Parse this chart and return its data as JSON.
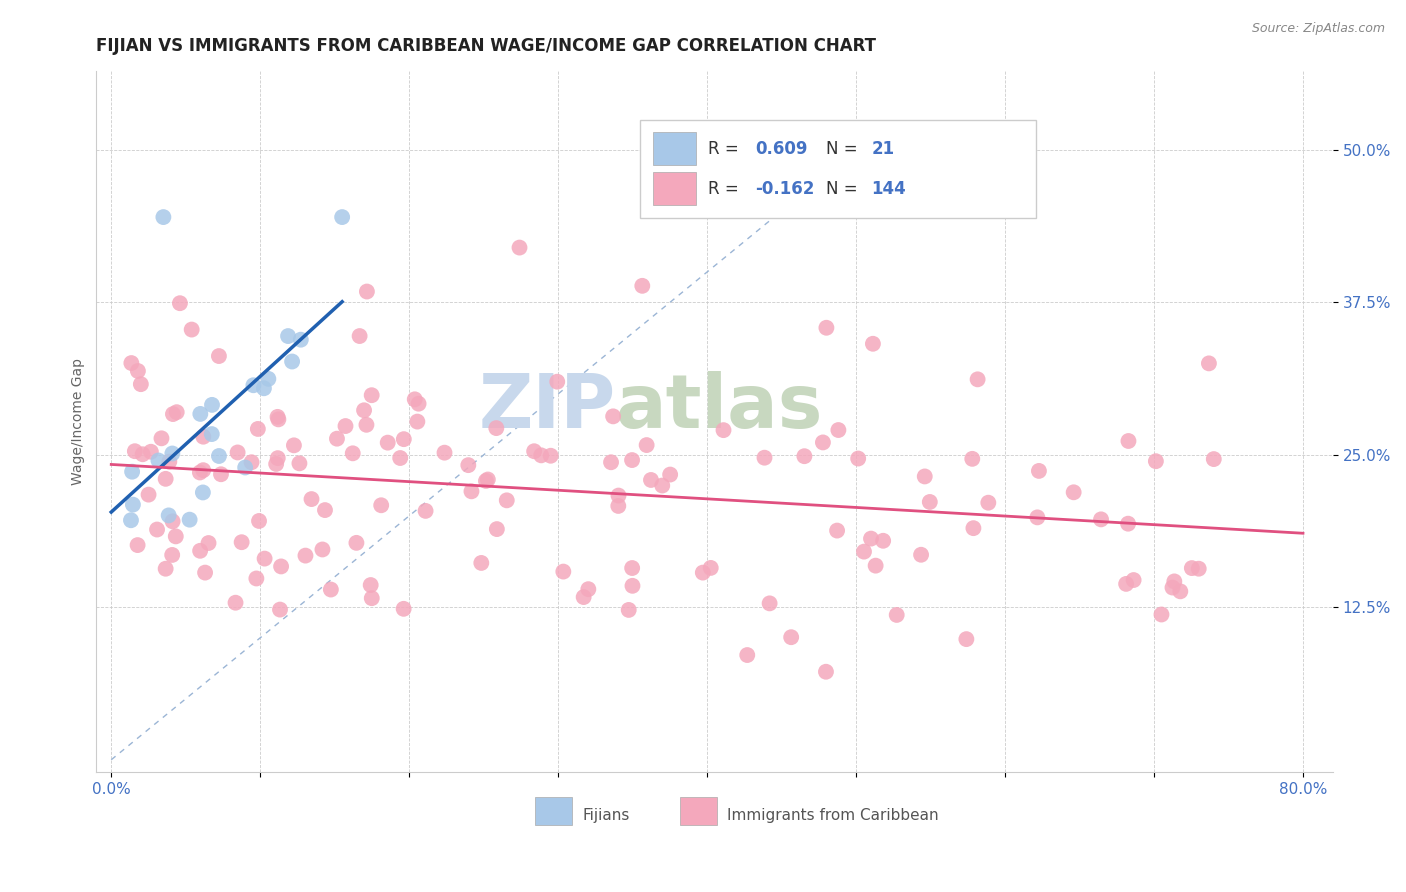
{
  "title": "FIJIAN VS IMMIGRANTS FROM CARIBBEAN WAGE/INCOME GAP CORRELATION CHART",
  "source_text": "Source: ZipAtlas.com",
  "ylabel": "Wage/Income Gap",
  "xlim": [
    0.0,
    0.8
  ],
  "ylim": [
    0.0,
    0.55
  ],
  "ytick_positions": [
    0.125,
    0.25,
    0.375,
    0.5
  ],
  "ytick_labels": [
    "12.5%",
    "25.0%",
    "37.5%",
    "50.0%"
  ],
  "blue_color": "#a8c8e8",
  "pink_color": "#f4a8bc",
  "blue_line_color": "#2060b0",
  "pink_line_color": "#e05080",
  "watermark_zip_color": "#c8d8ec",
  "watermark_atlas_color": "#c8d8c0",
  "title_fontsize": 12,
  "axis_label_fontsize": 10,
  "tick_fontsize": 11,
  "background_color": "#ffffff",
  "legend_fontsize": 12
}
